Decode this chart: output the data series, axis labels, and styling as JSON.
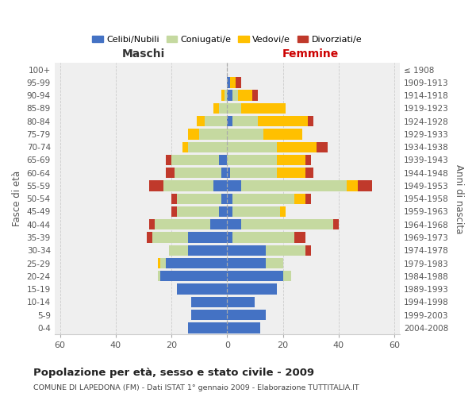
{
  "age_groups": [
    "0-4",
    "5-9",
    "10-14",
    "15-19",
    "20-24",
    "25-29",
    "30-34",
    "35-39",
    "40-44",
    "45-49",
    "50-54",
    "55-59",
    "60-64",
    "65-69",
    "70-74",
    "75-79",
    "80-84",
    "85-89",
    "90-94",
    "95-99",
    "100+"
  ],
  "birth_years": [
    "2004-2008",
    "1999-2003",
    "1994-1998",
    "1989-1993",
    "1984-1988",
    "1979-1983",
    "1974-1978",
    "1969-1973",
    "1964-1968",
    "1959-1963",
    "1954-1958",
    "1949-1953",
    "1944-1948",
    "1939-1943",
    "1934-1938",
    "1929-1933",
    "1924-1928",
    "1919-1923",
    "1914-1918",
    "1909-1913",
    "≤ 1908"
  ],
  "male_celibe": [
    14,
    13,
    13,
    18,
    24,
    22,
    14,
    14,
    6,
    3,
    2,
    5,
    2,
    3,
    0,
    0,
    0,
    0,
    0,
    0,
    0
  ],
  "male_coniugato": [
    0,
    0,
    0,
    0,
    1,
    2,
    7,
    13,
    20,
    15,
    16,
    18,
    17,
    17,
    14,
    10,
    8,
    3,
    1,
    0,
    0
  ],
  "male_vedovo": [
    0,
    0,
    0,
    0,
    0,
    1,
    0,
    0,
    0,
    0,
    0,
    0,
    0,
    0,
    2,
    4,
    3,
    2,
    1,
    0,
    0
  ],
  "male_divorziato": [
    0,
    0,
    0,
    0,
    0,
    0,
    0,
    2,
    2,
    2,
    2,
    5,
    3,
    2,
    0,
    0,
    0,
    0,
    0,
    0,
    0
  ],
  "female_celibe": [
    12,
    14,
    10,
    18,
    20,
    14,
    14,
    2,
    5,
    2,
    2,
    5,
    1,
    0,
    0,
    0,
    2,
    0,
    2,
    1,
    0
  ],
  "female_coniugata": [
    0,
    0,
    0,
    0,
    3,
    6,
    14,
    22,
    33,
    17,
    22,
    38,
    17,
    18,
    18,
    13,
    9,
    5,
    2,
    0,
    0
  ],
  "female_vedova": [
    0,
    0,
    0,
    0,
    0,
    0,
    0,
    0,
    0,
    2,
    4,
    4,
    10,
    10,
    14,
    14,
    18,
    16,
    5,
    2,
    0
  ],
  "female_divorziata": [
    0,
    0,
    0,
    0,
    0,
    0,
    2,
    4,
    2,
    0,
    2,
    5,
    3,
    2,
    4,
    0,
    2,
    0,
    2,
    2,
    0
  ],
  "colors": {
    "celibe": "#4472c4",
    "coniugato": "#c5d9a0",
    "vedovo": "#ffc000",
    "divorziato": "#c0392b"
  },
  "xlim": 62,
  "title": "Popolazione per età, sesso e stato civile - 2009",
  "subtitle": "COMUNE DI LAPEDONA (FM) - Dati ISTAT 1° gennaio 2009 - Elaborazione TUTTITALIA.IT",
  "xlabel_left": "Maschi",
  "xlabel_right": "Femmine",
  "ylabel": "Fasce di età",
  "ylabel_right": "Anni di nascita",
  "legend_labels": [
    "Celibi/Nubili",
    "Coniugati/e",
    "Vedovi/e",
    "Divorziati/e"
  ],
  "background_color": "#ffffff",
  "plot_bg_color": "#efefef",
  "grid_color": "#cccccc"
}
